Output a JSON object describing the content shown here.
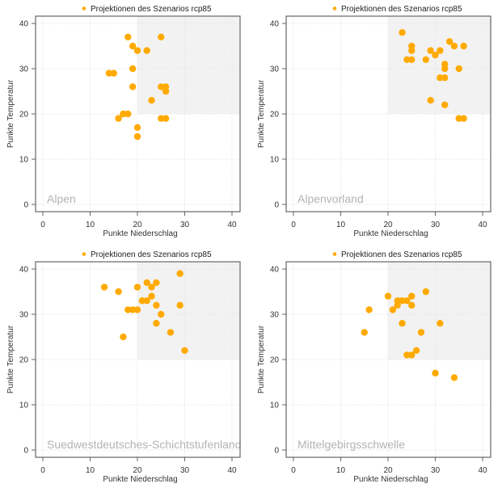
{
  "style": {
    "point_color": "#FFAA00",
    "shade_color": "#F2F2F2",
    "frame_color": "#666666",
    "grid_color": "#E6E6E6",
    "region_label_color": "#B3B3B3"
  },
  "chart_data": [
    {
      "type": "scatter",
      "title": "Alpen",
      "legend": "Projektionen des Szenarios rcp85",
      "legend_position": "top-center",
      "xlabel": "Punkte Niederschlag",
      "ylabel": "Punkte Temperatur",
      "xlim": [
        0,
        40
      ],
      "ylim": [
        0,
        40
      ],
      "xticks": [
        "0",
        "10",
        "20",
        "30",
        "40"
      ],
      "yticks": [
        "0",
        "10",
        "20",
        "30",
        "40"
      ],
      "grid": true,
      "shaded_region": {
        "x": [
          20,
          40
        ],
        "y": [
          20,
          40
        ]
      },
      "points": [
        [
          18,
          37
        ],
        [
          25,
          37
        ],
        [
          19,
          35
        ],
        [
          20,
          34
        ],
        [
          22,
          34
        ],
        [
          19,
          30
        ],
        [
          14,
          29
        ],
        [
          15,
          29
        ],
        [
          19,
          26
        ],
        [
          25,
          26
        ],
        [
          26,
          26
        ],
        [
          26,
          25
        ],
        [
          23,
          23
        ],
        [
          17,
          20
        ],
        [
          18,
          20
        ],
        [
          16,
          19
        ],
        [
          25,
          19
        ],
        [
          26,
          19
        ],
        [
          20,
          17
        ],
        [
          20,
          15
        ]
      ]
    },
    {
      "type": "scatter",
      "title": "Alpenvorland",
      "legend": "Projektionen des Szenarios rcp85",
      "legend_position": "top-center",
      "xlabel": "Punkte Niederschlag",
      "ylabel": "Punkte Temperatur",
      "xlim": [
        0,
        40
      ],
      "ylim": [
        0,
        40
      ],
      "xticks": [
        "0",
        "10",
        "20",
        "30",
        "40"
      ],
      "yticks": [
        "0",
        "10",
        "20",
        "30",
        "40"
      ],
      "grid": true,
      "shaded_region": {
        "x": [
          20,
          40
        ],
        "y": [
          20,
          40
        ]
      },
      "points": [
        [
          23,
          38
        ],
        [
          33,
          36
        ],
        [
          25,
          35
        ],
        [
          34,
          35
        ],
        [
          36,
          35
        ],
        [
          25,
          34
        ],
        [
          29,
          34
        ],
        [
          31,
          34
        ],
        [
          30,
          33
        ],
        [
          24,
          32
        ],
        [
          25,
          32
        ],
        [
          28,
          32
        ],
        [
          32,
          31
        ],
        [
          32,
          30
        ],
        [
          35,
          30
        ],
        [
          31,
          28
        ],
        [
          32,
          28
        ],
        [
          29,
          23
        ],
        [
          32,
          22
        ],
        [
          35,
          19
        ],
        [
          36,
          19
        ]
      ]
    },
    {
      "type": "scatter",
      "title": "Suedwestdeutsches-Schichtstufenland",
      "legend": "Projektionen des Szenarios rcp85",
      "legend_position": "top-center",
      "xlabel": "Punkte Niederschlag",
      "ylabel": "Punkte Temperatur",
      "xlim": [
        0,
        40
      ],
      "ylim": [
        0,
        40
      ],
      "xticks": [
        "0",
        "10",
        "20",
        "30",
        "40"
      ],
      "yticks": [
        "0",
        "10",
        "20",
        "30",
        "40"
      ],
      "grid": true,
      "shaded_region": {
        "x": [
          20,
          40
        ],
        "y": [
          20,
          40
        ]
      },
      "points": [
        [
          29,
          39
        ],
        [
          22,
          37
        ],
        [
          24,
          37
        ],
        [
          13,
          36
        ],
        [
          20,
          36
        ],
        [
          23,
          36
        ],
        [
          16,
          35
        ],
        [
          23,
          34
        ],
        [
          21,
          33
        ],
        [
          22,
          33
        ],
        [
          18,
          31
        ],
        [
          19,
          31
        ],
        [
          20,
          31
        ],
        [
          24,
          32
        ],
        [
          29,
          32
        ],
        [
          25,
          30
        ],
        [
          24,
          28
        ],
        [
          27,
          26
        ],
        [
          17,
          25
        ],
        [
          30,
          22
        ]
      ]
    },
    {
      "type": "scatter",
      "title": "Mittelgebirgsschwelle",
      "legend": "Projektionen des Szenarios rcp85",
      "legend_position": "top-center",
      "xlabel": "Punkte Niederschlag",
      "ylabel": "Punkte Temperatur",
      "xlim": [
        0,
        40
      ],
      "ylim": [
        0,
        40
      ],
      "xticks": [
        "0",
        "10",
        "20",
        "30",
        "40"
      ],
      "yticks": [
        "0",
        "10",
        "20",
        "30",
        "40"
      ],
      "grid": true,
      "shaded_region": {
        "x": [
          20,
          40
        ],
        "y": [
          20,
          40
        ]
      },
      "points": [
        [
          28,
          35
        ],
        [
          20,
          34
        ],
        [
          25,
          34
        ],
        [
          22,
          33
        ],
        [
          23,
          33
        ],
        [
          24,
          33
        ],
        [
          22,
          32
        ],
        [
          25,
          32
        ],
        [
          16,
          31
        ],
        [
          21,
          31
        ],
        [
          23,
          28
        ],
        [
          31,
          28
        ],
        [
          15,
          26
        ],
        [
          27,
          26
        ],
        [
          26,
          22
        ],
        [
          24,
          21
        ],
        [
          25,
          21
        ],
        [
          30,
          17
        ],
        [
          34,
          16
        ]
      ]
    }
  ]
}
